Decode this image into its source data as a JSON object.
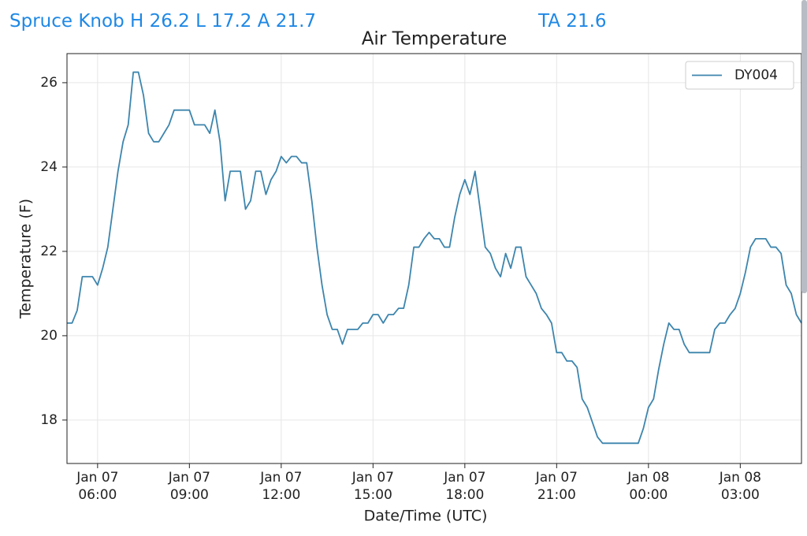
{
  "header": {
    "station": "Spruce Knob H 26.2 L 17.2 A 21.7",
    "average": "TA 21.6"
  },
  "chart_data": {
    "type": "line",
    "title": "Air Temperature",
    "xlabel": "Date/Time (UTC)",
    "ylabel": "Temperature (F)",
    "x": [
      "Jan 07 05:00",
      "Jan 07 05:10",
      "Jan 07 05:20",
      "Jan 07 05:30",
      "Jan 07 05:40",
      "Jan 07 05:50",
      "Jan 07 06:00",
      "Jan 07 06:10",
      "Jan 07 06:20",
      "Jan 07 06:30",
      "Jan 07 06:40",
      "Jan 07 06:50",
      "Jan 07 07:00",
      "Jan 07 07:10",
      "Jan 07 07:20",
      "Jan 07 07:30",
      "Jan 07 07:40",
      "Jan 07 07:50",
      "Jan 07 08:00",
      "Jan 07 08:10",
      "Jan 07 08:20",
      "Jan 07 08:30",
      "Jan 07 08:40",
      "Jan 07 08:50",
      "Jan 07 09:00",
      "Jan 07 09:10",
      "Jan 07 09:20",
      "Jan 07 09:30",
      "Jan 07 09:40",
      "Jan 07 09:50",
      "Jan 07 10:00",
      "Jan 07 10:10",
      "Jan 07 10:20",
      "Jan 07 10:30",
      "Jan 07 10:40",
      "Jan 07 10:50",
      "Jan 07 11:00",
      "Jan 07 11:10",
      "Jan 07 11:20",
      "Jan 07 11:30",
      "Jan 07 11:40",
      "Jan 07 11:50",
      "Jan 07 12:00",
      "Jan 07 12:10",
      "Jan 07 12:20",
      "Jan 07 12:30",
      "Jan 07 12:40",
      "Jan 07 12:50",
      "Jan 07 13:00",
      "Jan 07 13:10",
      "Jan 07 13:20",
      "Jan 07 13:30",
      "Jan 07 13:40",
      "Jan 07 13:50",
      "Jan 07 14:00",
      "Jan 07 14:10",
      "Jan 07 14:20",
      "Jan 07 14:30",
      "Jan 07 14:40",
      "Jan 07 14:50",
      "Jan 07 15:00",
      "Jan 07 15:10",
      "Jan 07 15:20",
      "Jan 07 15:30",
      "Jan 07 15:40",
      "Jan 07 15:50",
      "Jan 07 16:00",
      "Jan 07 16:10",
      "Jan 07 16:20",
      "Jan 07 16:30",
      "Jan 07 16:40",
      "Jan 07 16:50",
      "Jan 07 17:00",
      "Jan 07 17:10",
      "Jan 07 17:20",
      "Jan 07 17:30",
      "Jan 07 17:40",
      "Jan 07 17:50",
      "Jan 07 18:00",
      "Jan 07 18:10",
      "Jan 07 18:20",
      "Jan 07 18:30",
      "Jan 07 18:40",
      "Jan 07 18:50",
      "Jan 07 19:00",
      "Jan 07 19:10",
      "Jan 07 19:20",
      "Jan 07 19:30",
      "Jan 07 19:40",
      "Jan 07 19:50",
      "Jan 07 20:00",
      "Jan 07 20:10",
      "Jan 07 20:20",
      "Jan 07 20:30",
      "Jan 07 20:40",
      "Jan 07 20:50",
      "Jan 07 21:00",
      "Jan 07 21:10",
      "Jan 07 21:20",
      "Jan 07 21:30",
      "Jan 07 21:40",
      "Jan 07 21:50",
      "Jan 07 22:00",
      "Jan 07 22:10",
      "Jan 07 22:20",
      "Jan 07 22:30",
      "Jan 07 22:40",
      "Jan 07 22:50",
      "Jan 07 23:00",
      "Jan 07 23:10",
      "Jan 07 23:20",
      "Jan 07 23:30",
      "Jan 07 23:40",
      "Jan 07 23:50",
      "Jan 08 00:00",
      "Jan 08 00:10",
      "Jan 08 00:20",
      "Jan 08 00:30",
      "Jan 08 00:40",
      "Jan 08 00:50",
      "Jan 08 01:00",
      "Jan 08 01:10",
      "Jan 08 01:20",
      "Jan 08 01:30",
      "Jan 08 01:40",
      "Jan 08 01:50",
      "Jan 08 02:00",
      "Jan 08 02:10",
      "Jan 08 02:20",
      "Jan 08 02:30",
      "Jan 08 02:40",
      "Jan 08 02:50",
      "Jan 08 03:00",
      "Jan 08 03:10",
      "Jan 08 03:20",
      "Jan 08 03:30",
      "Jan 08 03:40",
      "Jan 08 03:50",
      "Jan 08 04:00",
      "Jan 08 04:10",
      "Jan 08 04:20",
      "Jan 08 04:30",
      "Jan 08 04:40",
      "Jan 08 04:50",
      "Jan 08 05:00"
    ],
    "series": [
      {
        "name": "DY004",
        "color": "#3d85ad",
        "values": [
          20.3,
          20.3,
          20.6,
          21.4,
          21.4,
          21.4,
          21.2,
          21.6,
          22.1,
          23.0,
          23.9,
          24.6,
          25.0,
          26.25,
          26.25,
          25.7,
          24.8,
          24.6,
          24.6,
          24.8,
          25.0,
          25.35,
          25.35,
          25.35,
          25.35,
          25.0,
          25.0,
          25.0,
          24.8,
          25.35,
          24.6,
          23.2,
          23.9,
          23.9,
          23.9,
          23.0,
          23.2,
          23.9,
          23.9,
          23.35,
          23.7,
          23.9,
          24.25,
          24.1,
          24.25,
          24.25,
          24.1,
          24.1,
          23.2,
          22.1,
          21.2,
          20.5,
          20.15,
          20.15,
          19.8,
          20.15,
          20.15,
          20.15,
          20.3,
          20.3,
          20.5,
          20.5,
          20.3,
          20.5,
          20.5,
          20.65,
          20.65,
          21.2,
          22.1,
          22.1,
          22.3,
          22.45,
          22.3,
          22.3,
          22.1,
          22.1,
          22.8,
          23.35,
          23.7,
          23.35,
          23.9,
          23.0,
          22.1,
          21.95,
          21.6,
          21.4,
          21.95,
          21.6,
          22.1,
          22.1,
          21.4,
          21.2,
          21.0,
          20.65,
          20.5,
          20.3,
          19.6,
          19.6,
          19.4,
          19.4,
          19.25,
          18.5,
          18.3,
          17.95,
          17.6,
          17.45,
          17.45,
          17.45,
          17.45,
          17.45,
          17.45,
          17.45,
          17.45,
          17.8,
          18.3,
          18.5,
          19.2,
          19.8,
          20.3,
          20.15,
          20.15,
          19.8,
          19.6,
          19.6,
          19.6,
          19.6,
          19.6,
          20.15,
          20.3,
          20.3,
          20.5,
          20.65,
          21.0,
          21.5,
          22.1,
          22.3,
          22.3,
          22.3,
          22.1,
          22.1,
          21.95,
          21.2,
          21.0,
          20.5,
          20.3
        ]
      }
    ],
    "xlim": [
      "Jan 07 05:00",
      "Jan 08 05:00"
    ],
    "xticks": [
      {
        "value": "Jan 07 06:00",
        "label": "Jan 07\n06:00"
      },
      {
        "value": "Jan 07 09:00",
        "label": "Jan 07\n09:00"
      },
      {
        "value": "Jan 07 12:00",
        "label": "Jan 07\n12:00"
      },
      {
        "value": "Jan 07 15:00",
        "label": "Jan 07\n15:00"
      },
      {
        "value": "Jan 07 18:00",
        "label": "Jan 07\n18:00"
      },
      {
        "value": "Jan 07 21:00",
        "label": "Jan 07\n21:00"
      },
      {
        "value": "Jan 08 00:00",
        "label": "Jan 08\n00:00"
      },
      {
        "value": "Jan 08 03:00",
        "label": "Jan 08\n03:00"
      }
    ],
    "ylim": [
      16.97,
      26.69
    ],
    "yticks": [
      18,
      20,
      22,
      24,
      26
    ],
    "grid": true,
    "legend": "upper right"
  }
}
